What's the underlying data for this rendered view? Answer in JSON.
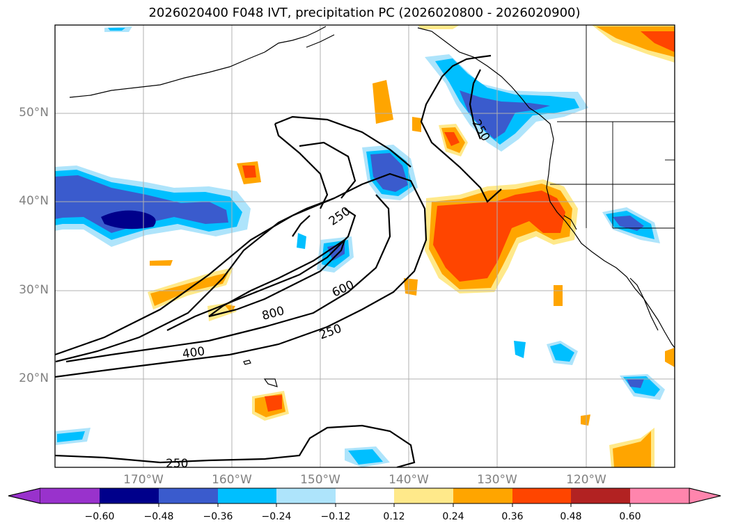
{
  "title": "2026020400 F048 IVT, precipitation PC (2026020800 - 2026020900)",
  "lat_labels": [
    "50°N",
    "40°N",
    "30°N",
    "20°N"
  ],
  "lon_labels": [
    "170°W",
    "160°W",
    "150°W",
    "140°W",
    "130°W",
    "120°W"
  ],
  "contour_labels": [
    "250",
    "250",
    "250",
    "250",
    "400",
    "600",
    "800"
  ],
  "colorbar": {
    "ticks": [
      "−0.60",
      "−0.48",
      "−0.36",
      "−0.24",
      "−0.12",
      "0.12",
      "0.24",
      "0.36",
      "0.48",
      "0.60"
    ],
    "colors": [
      "#9932cc",
      "#00008b",
      "#3a5bcd",
      "#00bfff",
      "#aee4fb",
      "#ffffff",
      "#ffe98a",
      "#ffa500",
      "#ff4500",
      "#b22222",
      "#ff85ad"
    ]
  },
  "colors": {
    "ivt_contour": "#000000",
    "coastline": "#000000",
    "grid": "#b0b0b0",
    "axis_label": "#808080"
  }
}
